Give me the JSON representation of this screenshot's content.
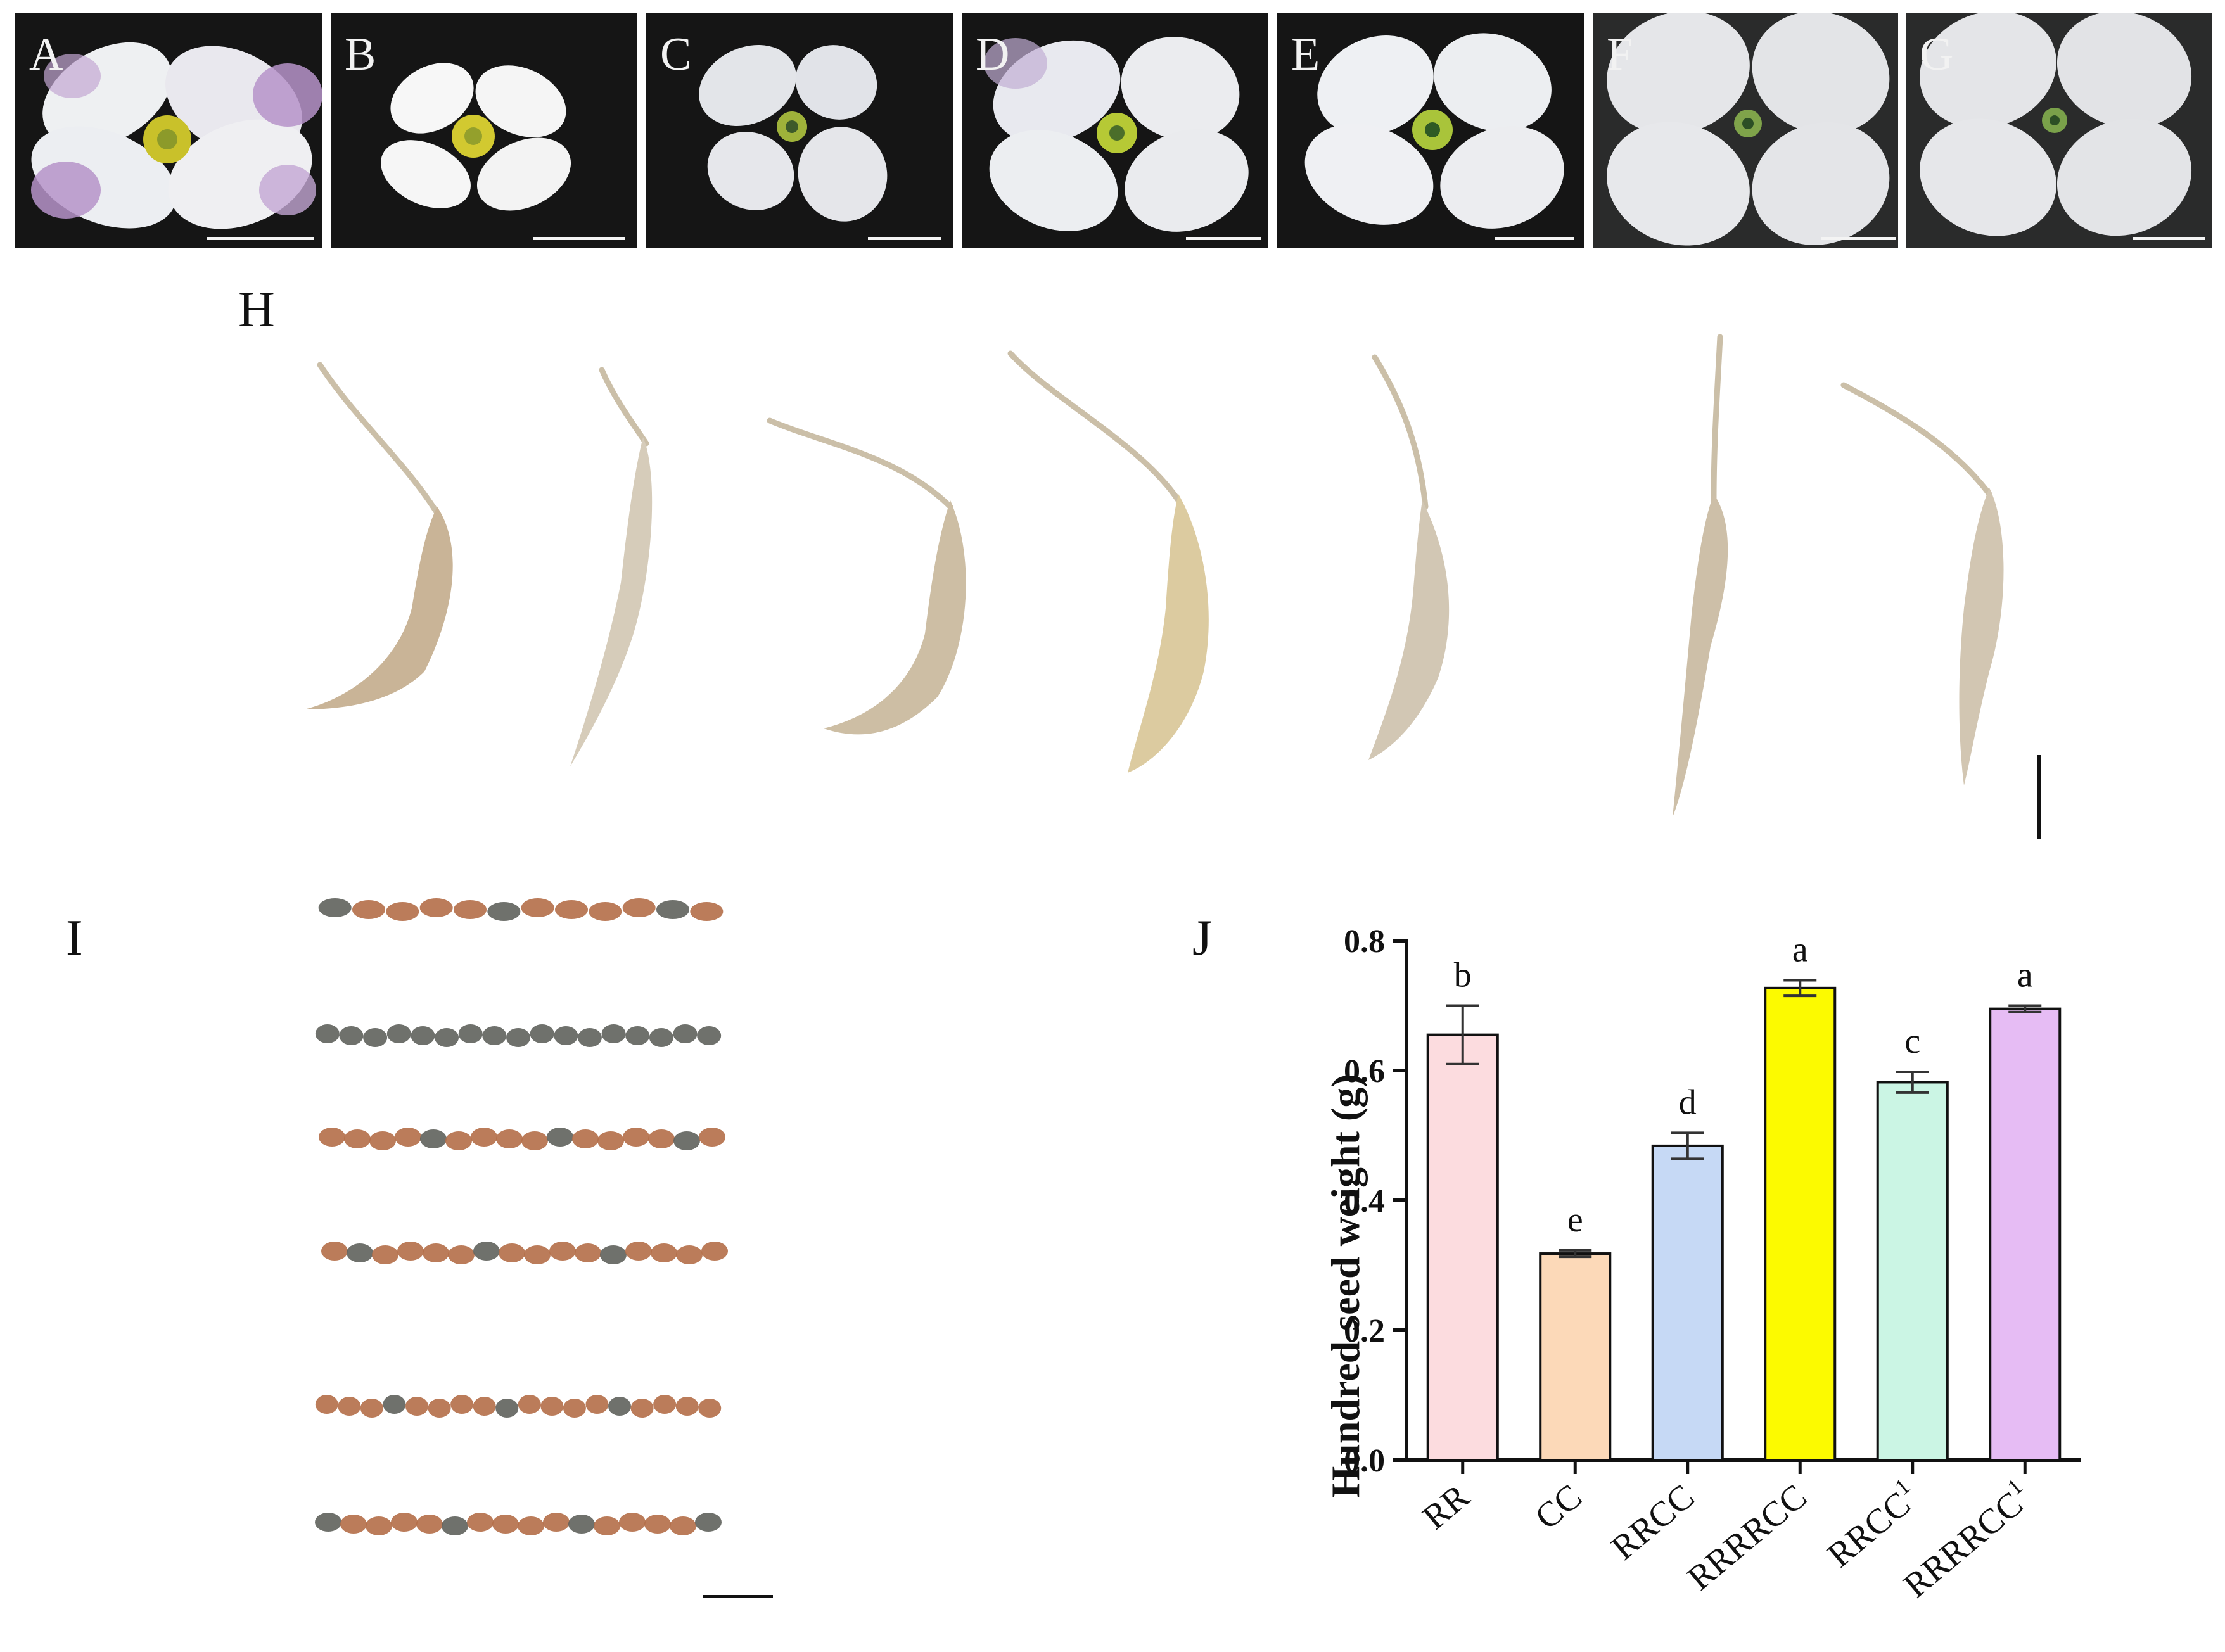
{
  "flower_panels": [
    {
      "label": "A"
    },
    {
      "label": "B"
    },
    {
      "label": "C"
    },
    {
      "label": "D"
    },
    {
      "label": "E"
    },
    {
      "label": "F"
    },
    {
      "label": "G"
    }
  ],
  "panel_labels": {
    "h": "H",
    "i": "I",
    "j": "J"
  },
  "colors": {
    "petal_purple_tint": "#b693c9",
    "petal_white": "#f4f4f6",
    "stamen_yellow": "#c9c12a",
    "pod_tan": "#cdbba0",
    "seed_brown": "#b46e48",
    "seed_grey": "#5f625c"
  },
  "chart_data": {
    "type": "bar",
    "ylabel": "Hundred seed weight (g)",
    "xlabel": "",
    "ylim": [
      0,
      0.8
    ],
    "yticks": [
      "0.0",
      "0.2",
      "0.4",
      "0.6",
      "0.8"
    ],
    "categories": [
      {
        "base": "RR",
        "sup": ""
      },
      {
        "base": "CC",
        "sup": ""
      },
      {
        "base": "RRCC",
        "sup": ""
      },
      {
        "base": "RRRRCC",
        "sup": ""
      },
      {
        "base": "RRCC",
        "sup": "1"
      },
      {
        "base": "RRRRCC",
        "sup": "1"
      }
    ],
    "values": [
      0.655,
      0.318,
      0.484,
      0.727,
      0.582,
      0.695
    ],
    "errors": [
      0.045,
      0.005,
      0.02,
      0.012,
      0.016,
      0.005
    ],
    "letters": [
      "b",
      "e",
      "d",
      "a",
      "c",
      "a"
    ],
    "bar_colors": [
      "#fcdcdf",
      "#fcd9b8",
      "#c6d9f5",
      "#fcfa00",
      "#cbf5e4",
      "#e6bcf4"
    ]
  }
}
